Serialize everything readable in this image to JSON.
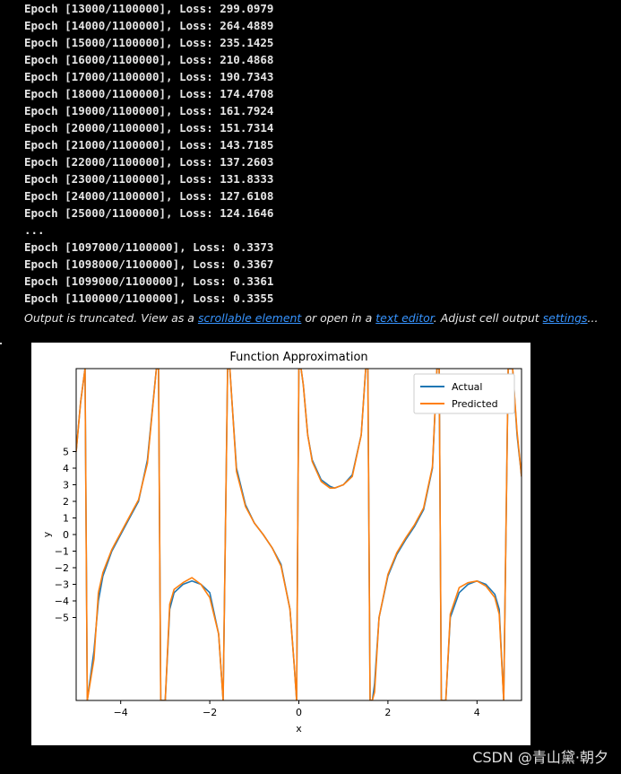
{
  "output_log": {
    "lines": [
      "Epoch [13000/1100000], Loss: 299.0979",
      "Epoch [14000/1100000], Loss: 264.4889",
      "Epoch [15000/1100000], Loss: 235.1425",
      "Epoch [16000/1100000], Loss: 210.4868",
      "Epoch [17000/1100000], Loss: 190.7343",
      "Epoch [18000/1100000], Loss: 174.4708",
      "Epoch [19000/1100000], Loss: 161.7924",
      "Epoch [20000/1100000], Loss: 151.7314",
      "Epoch [21000/1100000], Loss: 143.7185",
      "Epoch [22000/1100000], Loss: 137.2603",
      "Epoch [23000/1100000], Loss: 131.8333",
      "Epoch [24000/1100000], Loss: 127.6108",
      "Epoch [25000/1100000], Loss: 124.1646",
      "...",
      "Epoch [1097000/1100000], Loss: 0.3373",
      "Epoch [1098000/1100000], Loss: 0.3367",
      "Epoch [1099000/1100000], Loss: 0.3361",
      "Epoch [1100000/1100000], Loss: 0.3355"
    ]
  },
  "truncation_notice": {
    "prefix": "Output is truncated. View as a ",
    "link_scrollable": "scrollable element",
    "middle": " or open in a ",
    "link_editor": "text editor",
    "middle2": ". Adjust cell output ",
    "link_settings": "settings",
    "suffix": "..."
  },
  "watermark": "CSDN @青山黛·朝夕",
  "colors": {
    "background": "#000000",
    "text": "#e6e6e6",
    "link": "#3794ff",
    "actual": "#1f77b4",
    "predicted": "#ff7f0e"
  },
  "chart_data": {
    "type": "line",
    "title": "Function Approximation",
    "xlabel": "x",
    "ylabel": "y",
    "xlim": [
      -5,
      5
    ],
    "ylim": [
      -10,
      10
    ],
    "xticks": [
      -4,
      -2,
      0,
      2,
      4
    ],
    "xtick_labels": [
      "−4",
      "−2",
      "0",
      "2",
      "4"
    ],
    "yticks": [
      -5,
      -4,
      -3,
      -2,
      -1,
      0,
      1,
      2,
      3,
      4,
      5
    ],
    "ytick_labels": [
      "−5",
      "−4",
      "−3",
      "−2",
      "−1",
      "0",
      "1",
      "2",
      "3",
      "4",
      "5"
    ],
    "legend_position": "top-right",
    "grid": false,
    "series": [
      {
        "name": "Actual",
        "color": "#1f77b4",
        "x": [
          -5.0,
          -4.9,
          -4.8,
          -4.75,
          -4.6,
          -4.5,
          -4.4,
          -4.2,
          -4.0,
          -3.8,
          -3.6,
          -3.4,
          -3.2,
          -3.15,
          -3.1,
          -3.05,
          -3.0,
          -2.9,
          -2.8,
          -2.6,
          -2.4,
          -2.2,
          -2.0,
          -1.8,
          -1.7,
          -1.6,
          -1.55,
          -1.5,
          -1.4,
          -1.2,
          -1.0,
          -0.8,
          -0.6,
          -0.4,
          -0.2,
          -0.1,
          -0.05,
          0.0,
          0.05,
          0.1,
          0.2,
          0.3,
          0.5,
          0.7,
          0.8,
          1.0,
          1.2,
          1.4,
          1.5,
          1.55,
          1.6,
          1.65,
          1.7,
          1.8,
          2.0,
          2.2,
          2.4,
          2.6,
          2.8,
          3.0,
          3.1,
          3.15,
          3.2,
          3.3,
          3.4,
          3.6,
          3.8,
          4.0,
          4.2,
          4.4,
          4.5,
          4.6,
          4.7,
          4.8,
          4.9,
          5.0
        ],
        "y": [
          5.0,
          8.0,
          10.0,
          -10.0,
          -7.0,
          -4.0,
          -2.5,
          -1.0,
          0.0,
          1.0,
          2.0,
          4.5,
          10.0,
          10.0,
          -10.0,
          -10.0,
          -10.0,
          -4.5,
          -3.5,
          -3.0,
          -2.8,
          -3.0,
          -3.5,
          -6.0,
          -10.0,
          10.0,
          10.0,
          8.0,
          4.0,
          1.8,
          0.7,
          0.0,
          -0.8,
          -1.8,
          -4.5,
          -8.0,
          -10.0,
          10.0,
          10.0,
          9.0,
          6.0,
          4.5,
          3.3,
          2.9,
          2.8,
          3.0,
          3.6,
          6.0,
          10.0,
          10.0,
          -10.0,
          -10.0,
          -9.0,
          -5.0,
          -2.5,
          -1.2,
          -0.3,
          0.5,
          1.5,
          4.0,
          10.0,
          10.0,
          -10.0,
          -10.0,
          -5.0,
          -3.5,
          -3.0,
          -2.8,
          -3.0,
          -3.6,
          -4.5,
          -10.0,
          10.0,
          10.0,
          6.0,
          3.5
        ]
      },
      {
        "name": "Predicted",
        "color": "#ff7f0e",
        "x": [
          -5.0,
          -4.9,
          -4.8,
          -4.75,
          -4.6,
          -4.5,
          -4.4,
          -4.2,
          -4.0,
          -3.8,
          -3.6,
          -3.4,
          -3.2,
          -3.15,
          -3.1,
          -3.05,
          -3.0,
          -2.9,
          -2.8,
          -2.6,
          -2.4,
          -2.2,
          -2.0,
          -1.8,
          -1.7,
          -1.6,
          -1.55,
          -1.5,
          -1.4,
          -1.2,
          -1.0,
          -0.8,
          -0.6,
          -0.4,
          -0.2,
          -0.1,
          -0.05,
          0.0,
          0.05,
          0.1,
          0.2,
          0.3,
          0.5,
          0.7,
          0.8,
          1.0,
          1.2,
          1.4,
          1.5,
          1.55,
          1.6,
          1.65,
          1.7,
          1.8,
          2.0,
          2.2,
          2.4,
          2.6,
          2.8,
          3.0,
          3.1,
          3.15,
          3.2,
          3.3,
          3.4,
          3.6,
          3.8,
          4.0,
          4.2,
          4.4,
          4.5,
          4.6,
          4.7,
          4.8,
          4.9,
          5.0
        ],
        "y": [
          5.0,
          8.0,
          10.0,
          -10.0,
          -7.5,
          -3.5,
          -2.3,
          -0.9,
          0.1,
          1.1,
          2.1,
          4.3,
          10.0,
          10.0,
          -10.0,
          -10.0,
          -10.0,
          -4.2,
          -3.3,
          -2.9,
          -2.6,
          -3.0,
          -3.8,
          -6.0,
          -10.0,
          10.0,
          10.0,
          8.0,
          3.8,
          1.7,
          0.7,
          0.0,
          -0.8,
          -1.9,
          -4.5,
          -8.0,
          -10.0,
          10.0,
          10.0,
          9.0,
          6.0,
          4.4,
          3.2,
          2.8,
          2.8,
          3.0,
          3.5,
          6.0,
          10.0,
          10.0,
          -10.0,
          -10.0,
          -9.5,
          -5.0,
          -2.4,
          -1.1,
          -0.2,
          0.6,
          1.6,
          4.1,
          10.0,
          10.0,
          -10.0,
          -10.0,
          -4.8,
          -3.2,
          -2.9,
          -2.8,
          -3.1,
          -3.8,
          -4.8,
          -10.0,
          10.0,
          10.0,
          6.2,
          3.5
        ]
      }
    ]
  }
}
